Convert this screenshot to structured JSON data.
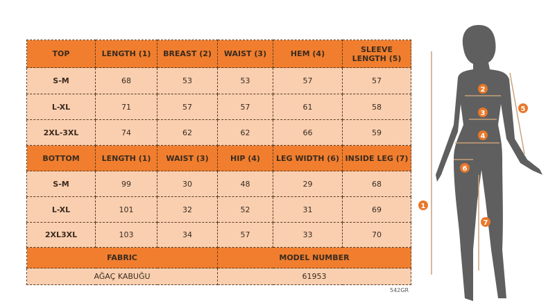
{
  "top": {
    "headers": [
      "TOP",
      "LENGTH (1)",
      "BREAST (2)",
      "WAIST (3)",
      "HEM (4)",
      "SLEEVE LENGTH (5)"
    ],
    "rows": [
      [
        "S-M",
        "68",
        "53",
        "53",
        "57",
        "57"
      ],
      [
        "L-XL",
        "71",
        "57",
        "57",
        "61",
        "58"
      ],
      [
        "2XL-3XL",
        "74",
        "62",
        "62",
        "66",
        "59"
      ]
    ]
  },
  "bottom": {
    "headers": [
      "BOTTOM",
      "LENGTH (1)",
      "WAIST (3)",
      "HIP (4)",
      "LEG WIDTH (6)",
      "INSIDE LEG (7)"
    ],
    "rows": [
      [
        "S-M",
        "99",
        "30",
        "48",
        "29",
        "68"
      ],
      [
        "L-XL",
        "101",
        "32",
        "52",
        "31",
        "69"
      ],
      [
        "2XL3XL",
        "103",
        "34",
        "57",
        "33",
        "70"
      ]
    ]
  },
  "info": {
    "fabric_label": "FABRIC",
    "model_label": "MODEL NUMBER",
    "fabric_value": "AĞAÇ KABUĞU",
    "model_value": "61953"
  },
  "code": "542GR",
  "figure": {
    "markers": [
      "1",
      "2",
      "3",
      "4",
      "5",
      "6",
      "7"
    ]
  },
  "colors": {
    "header": "#f07e2e",
    "cell": "#f9cfb0",
    "silhouette": "#5f5f5f",
    "marker": "#e8782a"
  }
}
